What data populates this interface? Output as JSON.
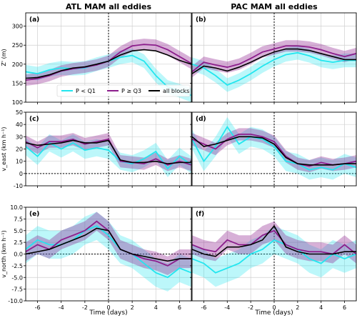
{
  "figure": {
    "col_titles": [
      "ATL MAM all eddies",
      "PAC MAM all eddies"
    ],
    "xlabel": "Time (days)",
    "colors": {
      "q1": "#22e6ef",
      "q3": "#8c1e8c",
      "all": "#000000"
    }
  },
  "chart_data": [
    {
      "type": "line",
      "panel_label": "(a)",
      "xlim": [
        -7,
        7
      ],
      "ylim": [
        100,
        335
      ],
      "yticks": [
        100,
        150,
        200,
        250,
        300
      ],
      "xticks": [
        -6,
        -4,
        -2,
        0,
        2,
        4,
        6
      ],
      "ylabel": "Z' (m)",
      "x": [
        -7,
        -6,
        -5,
        -4,
        -3,
        -2,
        -1,
        0,
        1,
        2,
        3,
        4,
        5,
        6,
        7
      ],
      "series": [
        {
          "name": "P < Q1",
          "values": [
            180,
            175,
            185,
            190,
            188,
            190,
            200,
            208,
            218,
            223,
            208,
            170,
            140,
            130,
            118
          ],
          "band": 18
        },
        {
          "name": "P ≥ Q3",
          "values": [
            158,
            162,
            170,
            182,
            188,
            192,
            198,
            208,
            232,
            248,
            252,
            250,
            238,
            220,
            202
          ],
          "band": 15
        },
        {
          "name": "all blocks",
          "values": [
            163,
            165,
            172,
            183,
            190,
            193,
            200,
            208,
            224,
            235,
            238,
            235,
            224,
            210,
            200
          ],
          "band": 0
        }
      ]
    },
    {
      "type": "line",
      "panel_label": "(b)",
      "xlim": [
        -7,
        7
      ],
      "ylim": [
        100,
        335
      ],
      "yticks": [
        100,
        150,
        200,
        250,
        300
      ],
      "xticks": [
        -6,
        -4,
        -2,
        0,
        2,
        4,
        6
      ],
      "ylabel": "",
      "x": [
        -7,
        -6,
        -5,
        -4,
        -3,
        -2,
        -1,
        0,
        1,
        2,
        3,
        4,
        5,
        6,
        7
      ],
      "series": [
        {
          "name": "P < Q1",
          "values": [
            200,
            190,
            170,
            145,
            158,
            175,
            195,
            212,
            225,
            230,
            222,
            210,
            205,
            210,
            210
          ],
          "band": 18
        },
        {
          "name": "P ≥ Q3",
          "values": [
            180,
            205,
            198,
            192,
            200,
            215,
            232,
            240,
            248,
            248,
            245,
            238,
            228,
            220,
            228
          ],
          "band": 15
        },
        {
          "name": "all blocks",
          "values": [
            175,
            195,
            190,
            182,
            192,
            205,
            220,
            232,
            240,
            240,
            236,
            228,
            220,
            212,
            212
          ],
          "band": 0
        }
      ]
    },
    {
      "type": "line",
      "panel_label": "(c)",
      "xlim": [
        -7,
        7
      ],
      "ylim": [
        -10,
        50
      ],
      "yticks": [
        -10,
        0,
        10,
        20,
        30,
        40,
        50
      ],
      "xticks": [
        -6,
        -4,
        -2,
        0,
        2,
        4,
        6
      ],
      "ylabel": "v_east (km h⁻¹)",
      "hline": 0,
      "x": [
        -7,
        -6,
        -5,
        -4,
        -3,
        -2,
        -1,
        0,
        1,
        2,
        3,
        4,
        5,
        6,
        7
      ],
      "series": [
        {
          "name": "P < Q1",
          "values": [
            22,
            14,
            25,
            20,
            25,
            19,
            21,
            19,
            10,
            8,
            12,
            18,
            4,
            14,
            7
          ],
          "band": 7
        },
        {
          "name": "P ≥ Q3",
          "values": [
            26,
            21,
            26,
            26,
            28,
            24,
            26,
            28,
            10,
            9,
            8,
            12,
            7,
            10,
            7
          ],
          "band": 5
        },
        {
          "name": "all blocks",
          "values": [
            25,
            23,
            24,
            25,
            27,
            25,
            25,
            27,
            11,
            9,
            9,
            10,
            8,
            9,
            9
          ],
          "band": 0
        }
      ]
    },
    {
      "type": "line",
      "panel_label": "(d)",
      "xlim": [
        -7,
        7
      ],
      "ylim": [
        -10,
        50
      ],
      "yticks": [
        -10,
        0,
        10,
        20,
        30,
        40,
        50
      ],
      "xticks": [
        -6,
        -4,
        -2,
        0,
        2,
        4,
        6
      ],
      "ylabel": "",
      "hline": 0,
      "x": [
        -7,
        -6,
        -5,
        -4,
        -3,
        -2,
        -1,
        0,
        1,
        2,
        3,
        4,
        5,
        6,
        7
      ],
      "series": [
        {
          "name": "P < Q1",
          "values": [
            28,
            10,
            22,
            38,
            24,
            30,
            28,
            22,
            10,
            8,
            3,
            5,
            3,
            8,
            5
          ],
          "band": 8
        },
        {
          "name": "P ≥ Q3",
          "values": [
            28,
            24,
            20,
            28,
            32,
            32,
            30,
            26,
            14,
            8,
            6,
            9,
            7,
            8,
            10
          ],
          "band": 5
        },
        {
          "name": "all blocks",
          "values": [
            30,
            22,
            24,
            27,
            30,
            30,
            29,
            24,
            13,
            8,
            7,
            7,
            7,
            8,
            8
          ],
          "band": 0
        }
      ]
    },
    {
      "type": "line",
      "panel_label": "(e)",
      "xlim": [
        -7,
        7
      ],
      "ylim": [
        -10,
        10
      ],
      "yticks": [
        -10.0,
        -7.5,
        -5.0,
        -2.5,
        0.0,
        2.5,
        5.0,
        7.5,
        10.0
      ],
      "xticks": [
        -6,
        -4,
        -2,
        0,
        2,
        4,
        6
      ],
      "ylabel": "v_north (km h⁻¹)",
      "hline": 0,
      "x": [
        -7,
        -6,
        -5,
        -4,
        -3,
        -2,
        -1,
        0,
        1,
        2,
        3,
        4,
        5,
        6,
        7
      ],
      "series": [
        {
          "name": "P < Q1",
          "values": [
            1,
            3,
            2,
            2,
            3,
            5,
            6,
            4,
            1,
            0,
            -2,
            -4,
            -5,
            -3,
            -4
          ],
          "band": 3
        },
        {
          "name": "P ≥ Q3",
          "values": [
            0.5,
            2,
            1,
            3,
            4,
            5,
            7,
            5,
            1,
            0,
            -1,
            -1.5,
            -2.5,
            -1,
            -1
          ],
          "band": 2
        },
        {
          "name": "all blocks",
          "values": [
            0,
            0.5,
            1,
            2,
            3,
            4,
            5.5,
            5,
            1,
            0,
            -0.5,
            -1,
            -1.5,
            -1,
            -1
          ],
          "band": 0
        }
      ]
    },
    {
      "type": "line",
      "panel_label": "(f)",
      "xlim": [
        -7,
        7
      ],
      "ylim": [
        -10,
        10
      ],
      "yticks": [
        -10.0,
        -7.5,
        -5.0,
        -2.5,
        0.0,
        2.5,
        5.0,
        7.5,
        10.0
      ],
      "xticks": [
        -6,
        -4,
        -2,
        0,
        2,
        4,
        6
      ],
      "ylabel": "",
      "hline": 0,
      "x": [
        -7,
        -6,
        -5,
        -4,
        -3,
        -2,
        -1,
        0,
        1,
        2,
        3,
        4,
        5,
        6,
        7
      ],
      "series": [
        {
          "name": "P < Q1",
          "values": [
            -1,
            -2,
            -4,
            -3,
            -2,
            0,
            1,
            3,
            2,
            1,
            -1,
            -2,
            0,
            -1,
            0
          ],
          "band": 3
        },
        {
          "name": "P ≥ Q3",
          "values": [
            2,
            1,
            0.5,
            3,
            2,
            2,
            4,
            5,
            2,
            1,
            0.5,
            0.5,
            0,
            2,
            0
          ],
          "band": 2
        },
        {
          "name": "all blocks",
          "values": [
            1,
            0,
            -0.5,
            1.5,
            1.5,
            2,
            3,
            6,
            1.5,
            0.5,
            0,
            0,
            0,
            0.5,
            0.5
          ],
          "band": 0
        }
      ]
    }
  ]
}
